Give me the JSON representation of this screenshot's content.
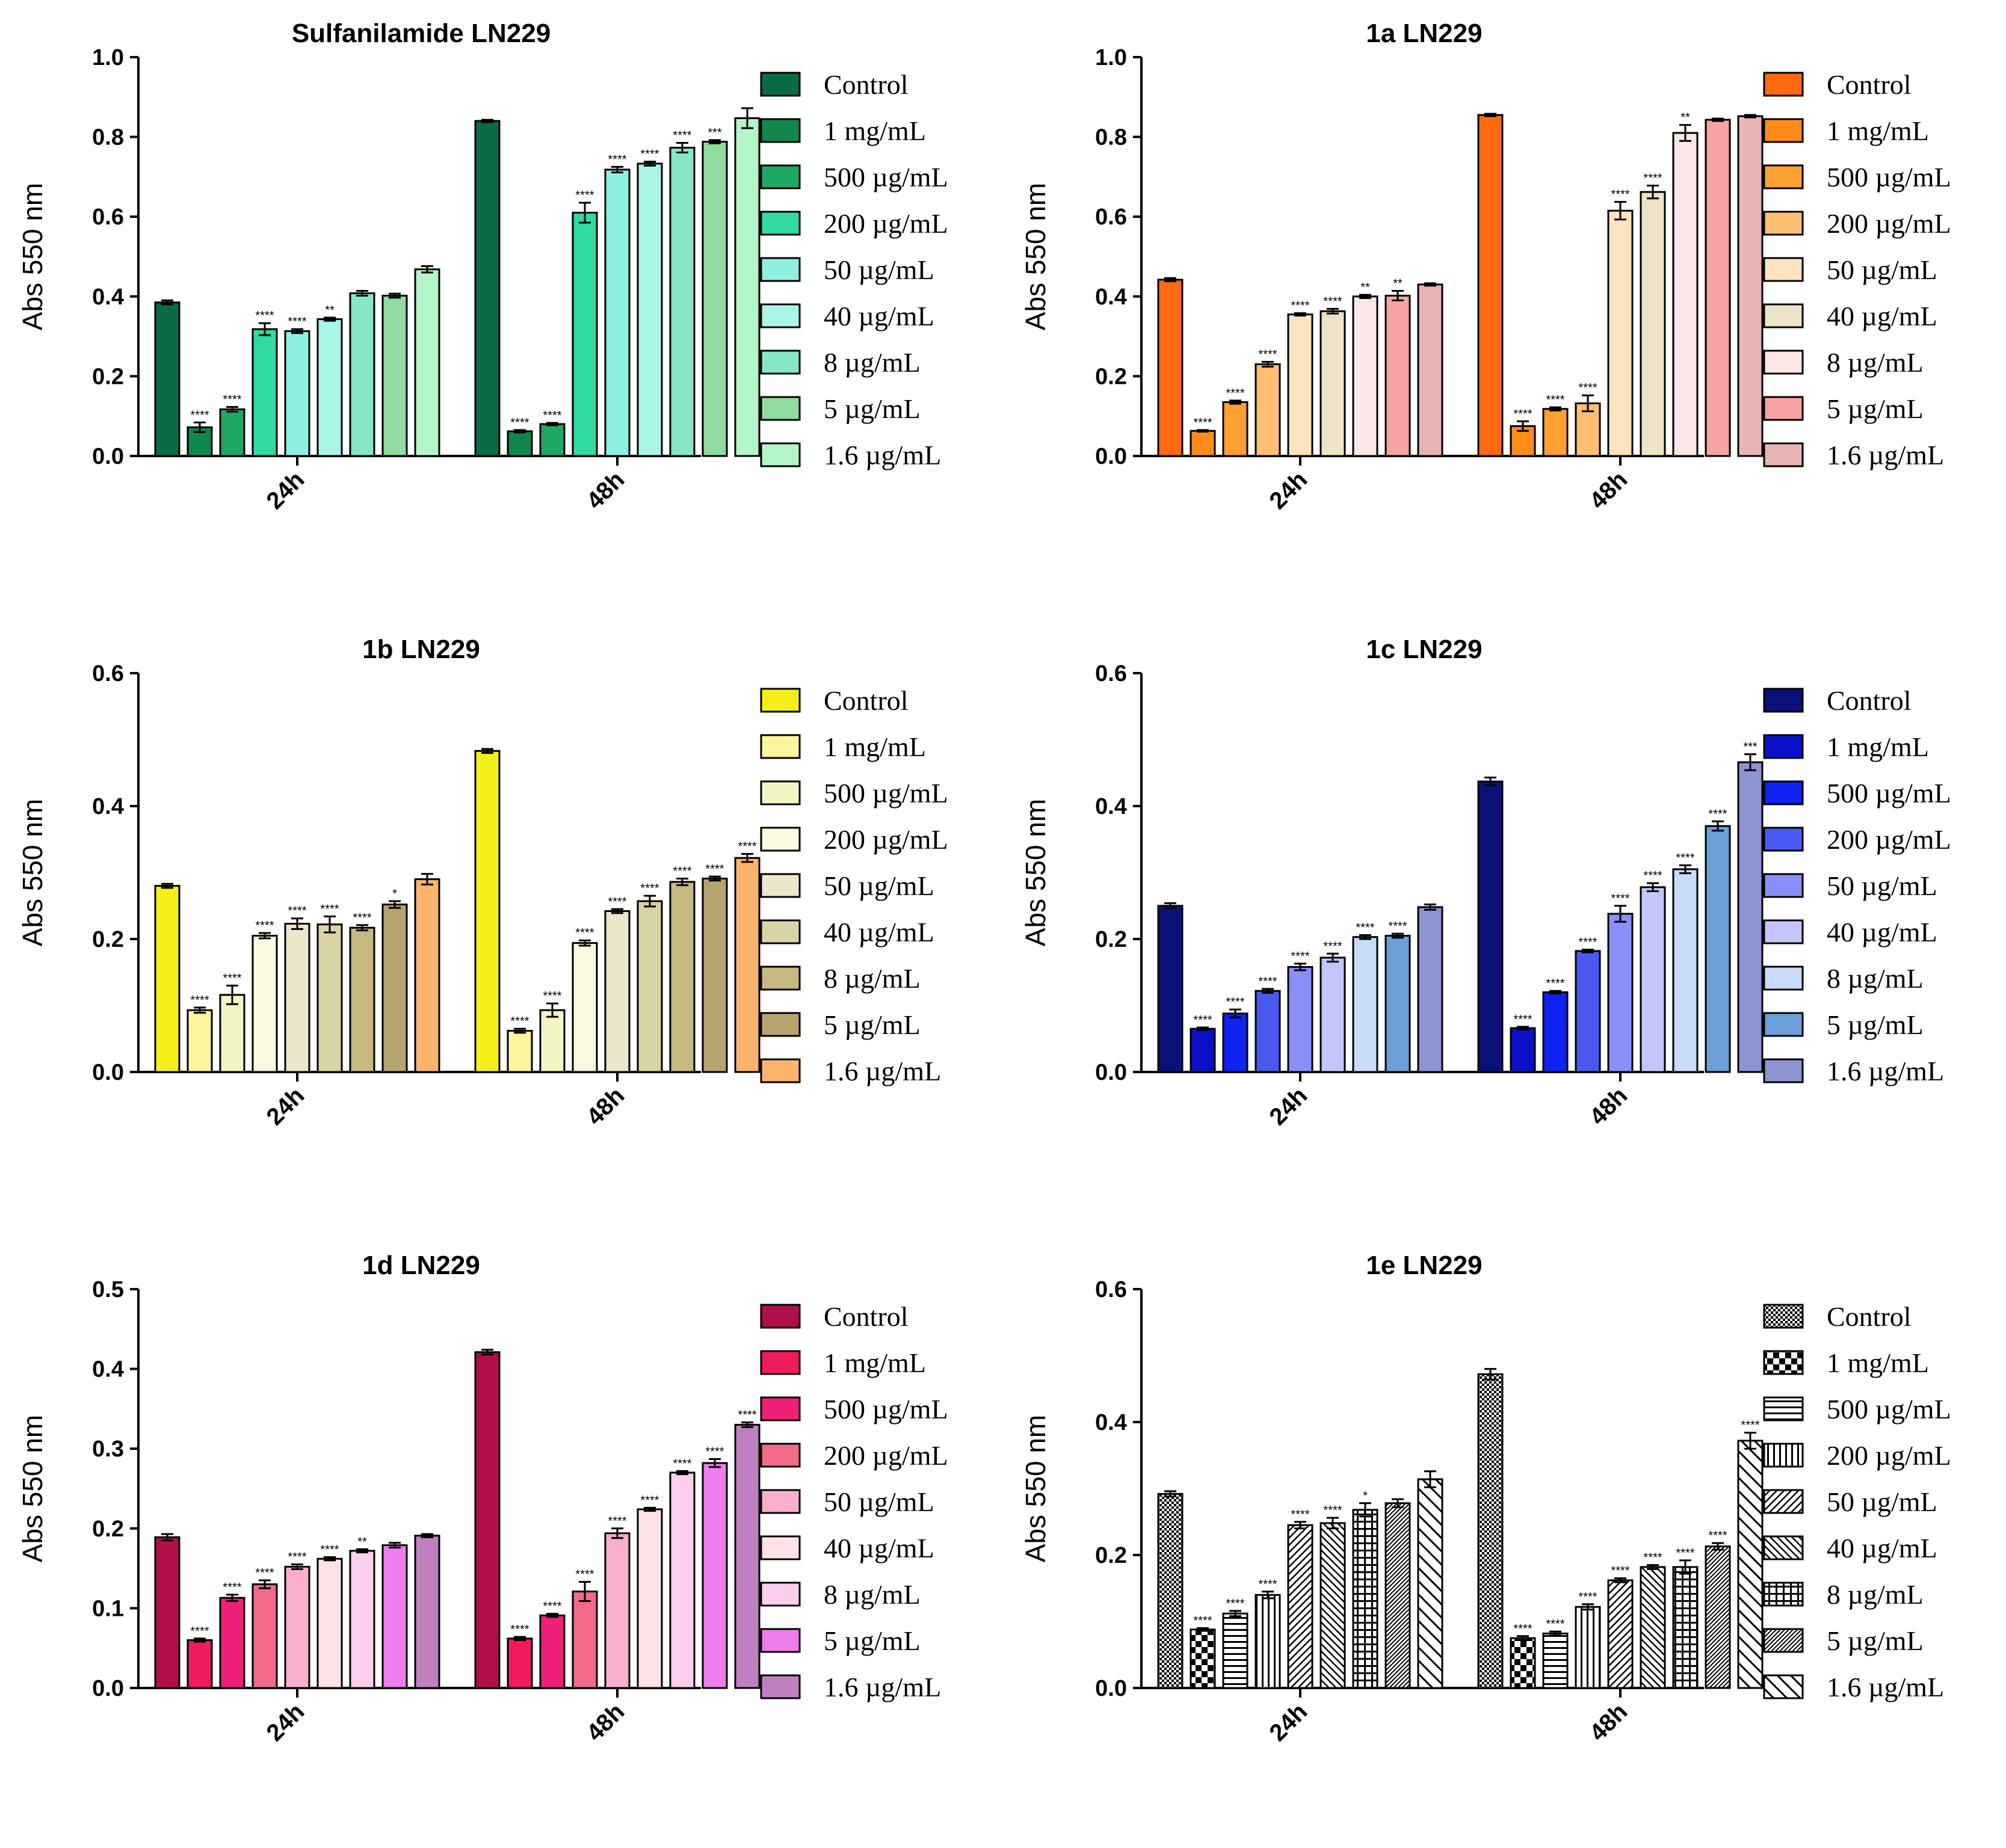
{
  "chart_data": [
    {
      "type": "bar",
      "title": "Sulfanilamide LN229",
      "ylabel": "Abs 550 nm",
      "xlabel": "",
      "ylim": [
        0,
        1.0
      ],
      "yticks": [
        "0.0",
        "0.2",
        "0.4",
        "0.6",
        "0.8",
        "1.0"
      ],
      "categories": [
        "24h",
        "48h"
      ],
      "series": [
        {
          "name": "Control",
          "values": [
            0.385,
            0.84
          ],
          "color": "#0b6b45"
        },
        {
          "name": "1 mg/mL",
          "values": [
            0.072,
            0.062
          ],
          "color": "#11874e"
        },
        {
          "name": "500 µg/mL",
          "values": [
            0.117,
            0.08
          ],
          "color": "#1ea866"
        },
        {
          "name": "200 µg/mL",
          "values": [
            0.318,
            0.61
          ],
          "color": "#2fdba0"
        },
        {
          "name": "50 µg/mL",
          "values": [
            0.313,
            0.718
          ],
          "color": "#8ef0e0"
        },
        {
          "name": "40 µg/mL",
          "values": [
            0.343,
            0.733
          ],
          "color": "#aaf5e8"
        },
        {
          "name": "8 µg/mL",
          "values": [
            0.408,
            0.773
          ],
          "color": "#86e6c8"
        },
        {
          "name": "5 µg/mL",
          "values": [
            0.402,
            0.788
          ],
          "color": "#8fdba0"
        },
        {
          "name": "1.6 µg/mL",
          "values": [
            0.468,
            0.847
          ],
          "color": "#b3f5c8"
        }
      ],
      "errors": [
        [
          0.005,
          0.003
        ],
        [
          0.012,
          0.003
        ],
        [
          0.006,
          0.003
        ],
        [
          0.015,
          0.025
        ],
        [
          0.005,
          0.007
        ],
        [
          0.004,
          0.005
        ],
        [
          0.006,
          0.012
        ],
        [
          0.005,
          0.004
        ],
        [
          0.008,
          0.025
        ]
      ],
      "annotations": [
        [
          "",
          ""
        ],
        [
          "****",
          "****"
        ],
        [
          "****",
          "****"
        ],
        [
          "****",
          "****"
        ],
        [
          "****",
          "****"
        ],
        [
          "**",
          "****"
        ],
        [
          "",
          "****"
        ],
        [
          "",
          "***"
        ],
        [
          "",
          ""
        ]
      ]
    },
    {
      "type": "bar",
      "title": "1a LN229",
      "ylabel": "Abs 550 nm",
      "xlabel": "",
      "ylim": [
        0,
        1.0
      ],
      "yticks": [
        "0.0",
        "0.2",
        "0.4",
        "0.6",
        "0.8",
        "1.0"
      ],
      "categories": [
        "24h",
        "48h"
      ],
      "series": [
        {
          "name": "Control",
          "values": [
            0.442,
            0.855
          ],
          "color": "#ff6a10"
        },
        {
          "name": "1 mg/mL",
          "values": [
            0.063,
            0.075
          ],
          "color": "#ff8c1a"
        },
        {
          "name": "500 µg/mL",
          "values": [
            0.135,
            0.118
          ],
          "color": "#ffa033"
        },
        {
          "name": "200 µg/mL",
          "values": [
            0.23,
            0.132
          ],
          "color": "#ffbf73"
        },
        {
          "name": "50 µg/mL",
          "values": [
            0.355,
            0.615
          ],
          "color": "#ffe3c0"
        },
        {
          "name": "40 µg/mL",
          "values": [
            0.363,
            0.662
          ],
          "color": "#ece3c8"
        },
        {
          "name": "8 µg/mL",
          "values": [
            0.4,
            0.81
          ],
          "color": "#fde6e6"
        },
        {
          "name": "5 µg/mL",
          "values": [
            0.402,
            0.843
          ],
          "color": "#f7a3a3"
        },
        {
          "name": "1.6 µg/mL",
          "values": [
            0.43,
            0.852
          ],
          "color": "#e8b4b4"
        }
      ],
      "errors": [
        [
          0.004,
          0.003
        ],
        [
          0.002,
          0.012
        ],
        [
          0.004,
          0.004
        ],
        [
          0.006,
          0.02
        ],
        [
          0.003,
          0.022
        ],
        [
          0.006,
          0.016
        ],
        [
          0.004,
          0.02
        ],
        [
          0.012,
          0.003
        ],
        [
          0.003,
          0.003
        ]
      ],
      "annotations": [
        [
          "",
          ""
        ],
        [
          "****",
          "****"
        ],
        [
          "****",
          "****"
        ],
        [
          "****",
          "****"
        ],
        [
          "****",
          "****"
        ],
        [
          "****",
          "****"
        ],
        [
          "**",
          "**"
        ],
        [
          "**",
          ""
        ],
        [
          "",
          ""
        ]
      ]
    },
    {
      "type": "bar",
      "title": "1b LN229",
      "ylabel": "Abs 550 nm",
      "xlabel": "",
      "ylim": [
        0,
        0.6
      ],
      "yticks": [
        "0.0",
        "0.2",
        "0.4",
        "0.6"
      ],
      "categories": [
        "24h",
        "48h"
      ],
      "series": [
        {
          "name": "Control",
          "values": [
            0.28,
            0.483
          ],
          "color": "#f4ef1a"
        },
        {
          "name": "1 mg/mL",
          "values": [
            0.093,
            0.062
          ],
          "color": "#fbf59e"
        },
        {
          "name": "500 µg/mL",
          "values": [
            0.116,
            0.093
          ],
          "color": "#f3f6c4"
        },
        {
          "name": "200 µg/mL",
          "values": [
            0.205,
            0.194
          ],
          "color": "#fbf9e2"
        },
        {
          "name": "50 µg/mL",
          "values": [
            0.223,
            0.242
          ],
          "color": "#ece6cb"
        },
        {
          "name": "40 µg/mL",
          "values": [
            0.222,
            0.257
          ],
          "color": "#d9d4a5"
        },
        {
          "name": "8 µg/mL",
          "values": [
            0.217,
            0.286
          ],
          "color": "#c6b97f"
        },
        {
          "name": "5 µg/mL",
          "values": [
            0.252,
            0.291
          ],
          "color": "#b5a46e"
        },
        {
          "name": "1.6 µg/mL",
          "values": [
            0.29,
            0.322
          ],
          "color": "#fbb46e"
        }
      ],
      "errors": [
        [
          0.003,
          0.003
        ],
        [
          0.004,
          0.003
        ],
        [
          0.014,
          0.01
        ],
        [
          0.004,
          0.004
        ],
        [
          0.008,
          0.003
        ],
        [
          0.012,
          0.008
        ],
        [
          0.004,
          0.005
        ],
        [
          0.005,
          0.003
        ],
        [
          0.008,
          0.006
        ]
      ],
      "annotations": [
        [
          "",
          ""
        ],
        [
          "****",
          "****"
        ],
        [
          "****",
          "****"
        ],
        [
          "****",
          "****"
        ],
        [
          "****",
          "****"
        ],
        [
          "****",
          "****"
        ],
        [
          "****",
          "****"
        ],
        [
          "*",
          "****"
        ],
        [
          "",
          "****"
        ]
      ]
    },
    {
      "type": "bar",
      "title": "1c LN229",
      "ylabel": "Abs 550 nm",
      "xlabel": "",
      "ylim": [
        0,
        0.6
      ],
      "yticks": [
        "0.0",
        "0.2",
        "0.4",
        "0.6"
      ],
      "categories": [
        "24h",
        "48h"
      ],
      "series": [
        {
          "name": "Control",
          "values": [
            0.25,
            0.437
          ],
          "color": "#0a127a"
        },
        {
          "name": "1 mg/mL",
          "values": [
            0.065,
            0.066
          ],
          "color": "#0a10c8"
        },
        {
          "name": "500 µg/mL",
          "values": [
            0.088,
            0.12
          ],
          "color": "#0e22f2"
        },
        {
          "name": "200 µg/mL",
          "values": [
            0.122,
            0.182
          ],
          "color": "#4a5af0"
        },
        {
          "name": "50 µg/mL",
          "values": [
            0.158,
            0.238
          ],
          "color": "#8a8ef8"
        },
        {
          "name": "40 µg/mL",
          "values": [
            0.172,
            0.278
          ],
          "color": "#c4c6fa"
        },
        {
          "name": "8 µg/mL",
          "values": [
            0.203,
            0.305
          ],
          "color": "#c8dcfa"
        },
        {
          "name": "5 µg/mL",
          "values": [
            0.205,
            0.37
          ],
          "color": "#6a9fd8"
        },
        {
          "name": "1.6 µg/mL",
          "values": [
            0.248,
            0.466
          ],
          "color": "#8d92d0"
        }
      ],
      "errors": [
        [
          0.004,
          0.006
        ],
        [
          0.002,
          0.002
        ],
        [
          0.006,
          0.002
        ],
        [
          0.003,
          0.002
        ],
        [
          0.005,
          0.012
        ],
        [
          0.006,
          0.006
        ],
        [
          0.003,
          0.006
        ],
        [
          0.003,
          0.007
        ],
        [
          0.004,
          0.012
        ]
      ],
      "annotations": [
        [
          "",
          ""
        ],
        [
          "****",
          "****"
        ],
        [
          "****",
          "****"
        ],
        [
          "****",
          "****"
        ],
        [
          "****",
          "****"
        ],
        [
          "****",
          "****"
        ],
        [
          "****",
          "****"
        ],
        [
          "****",
          "****"
        ],
        [
          "",
          "***"
        ]
      ]
    },
    {
      "type": "bar",
      "title": "1d LN229",
      "ylabel": "Abs 550 nm",
      "xlabel": "",
      "ylim": [
        0,
        0.5
      ],
      "yticks": [
        "0.0",
        "0.1",
        "0.2",
        "0.3",
        "0.4",
        "0.5"
      ],
      "categories": [
        "24h",
        "48h"
      ],
      "series": [
        {
          "name": "Control",
          "values": [
            0.189,
            0.421
          ],
          "color": "#b0104a"
        },
        {
          "name": "1 mg/mL",
          "values": [
            0.06,
            0.062
          ],
          "color": "#f01a5e"
        },
        {
          "name": "500 µg/mL",
          "values": [
            0.113,
            0.091
          ],
          "color": "#f0207a"
        },
        {
          "name": "200 µg/mL",
          "values": [
            0.13,
            0.121
          ],
          "color": "#f26a8a"
        },
        {
          "name": "50 µg/mL",
          "values": [
            0.152,
            0.194
          ],
          "color": "#f9aecb"
        },
        {
          "name": "40 µg/mL",
          "values": [
            0.162,
            0.224
          ],
          "color": "#fde2e6"
        },
        {
          "name": "8 µg/mL",
          "values": [
            0.172,
            0.27
          ],
          "color": "#fcd0ec"
        },
        {
          "name": "5 µg/mL",
          "values": [
            0.179,
            0.282
          ],
          "color": "#ee7cec"
        },
        {
          "name": "1.6 µg/mL",
          "values": [
            0.191,
            0.33
          ],
          "color": "#c080c0"
        }
      ],
      "errors": [
        [
          0.004,
          0.003
        ],
        [
          0.002,
          0.002
        ],
        [
          0.004,
          0.002
        ],
        [
          0.005,
          0.012
        ],
        [
          0.003,
          0.006
        ],
        [
          0.002,
          0.002
        ],
        [
          0.002,
          0.002
        ],
        [
          0.003,
          0.005
        ],
        [
          0.002,
          0.003
        ]
      ],
      "annotations": [
        [
          "",
          ""
        ],
        [
          "****",
          "****"
        ],
        [
          "****",
          "****"
        ],
        [
          "****",
          "****"
        ],
        [
          "****",
          "****"
        ],
        [
          "****",
          "****"
        ],
        [
          "**",
          "****"
        ],
        [
          "",
          "****"
        ],
        [
          "",
          "****"
        ]
      ]
    },
    {
      "type": "bar",
      "title": "1e LN229",
      "ylabel": "Abs 550 nm",
      "xlabel": "",
      "ylim": [
        0,
        0.6
      ],
      "yticks": [
        "0.0",
        "0.2",
        "0.4",
        "0.6"
      ],
      "categories": [
        "24h",
        "48h"
      ],
      "series": [
        {
          "name": "Control",
          "values": [
            0.292,
            0.472
          ],
          "pattern": "fine-check"
        },
        {
          "name": "1 mg/mL",
          "values": [
            0.088,
            0.075
          ],
          "pattern": "big-check"
        },
        {
          "name": "500 µg/mL",
          "values": [
            0.112,
            0.082
          ],
          "pattern": "h-lines"
        },
        {
          "name": "200 µg/mL",
          "values": [
            0.14,
            0.122
          ],
          "pattern": "v-lines"
        },
        {
          "name": "50 µg/mL",
          "values": [
            0.245,
            0.162
          ],
          "pattern": "diag-fwd"
        },
        {
          "name": "40 µg/mL",
          "values": [
            0.248,
            0.182
          ],
          "pattern": "diag-back"
        },
        {
          "name": "8 µg/mL",
          "values": [
            0.268,
            0.182
          ],
          "pattern": "grid"
        },
        {
          "name": "5 µg/mL",
          "values": [
            0.278,
            0.213
          ],
          "pattern": "diag-fwd-dense"
        },
        {
          "name": "1.6 µg/mL",
          "values": [
            0.314,
            0.372
          ],
          "pattern": "diag-back-wide"
        }
      ],
      "errors": [
        [
          0.004,
          0.008
        ],
        [
          0.002,
          0.003
        ],
        [
          0.004,
          0.003
        ],
        [
          0.005,
          0.004
        ],
        [
          0.005,
          0.003
        ],
        [
          0.008,
          0.003
        ],
        [
          0.01,
          0.01
        ],
        [
          0.006,
          0.005
        ],
        [
          0.012,
          0.012
        ]
      ],
      "annotations": [
        [
          "",
          ""
        ],
        [
          "****",
          "****"
        ],
        [
          "****",
          "****"
        ],
        [
          "****",
          "****"
        ],
        [
          "****",
          "****"
        ],
        [
          "****",
          "****"
        ],
        [
          "*",
          "****"
        ],
        [
          "",
          "****"
        ],
        [
          "",
          "****"
        ]
      ]
    }
  ]
}
